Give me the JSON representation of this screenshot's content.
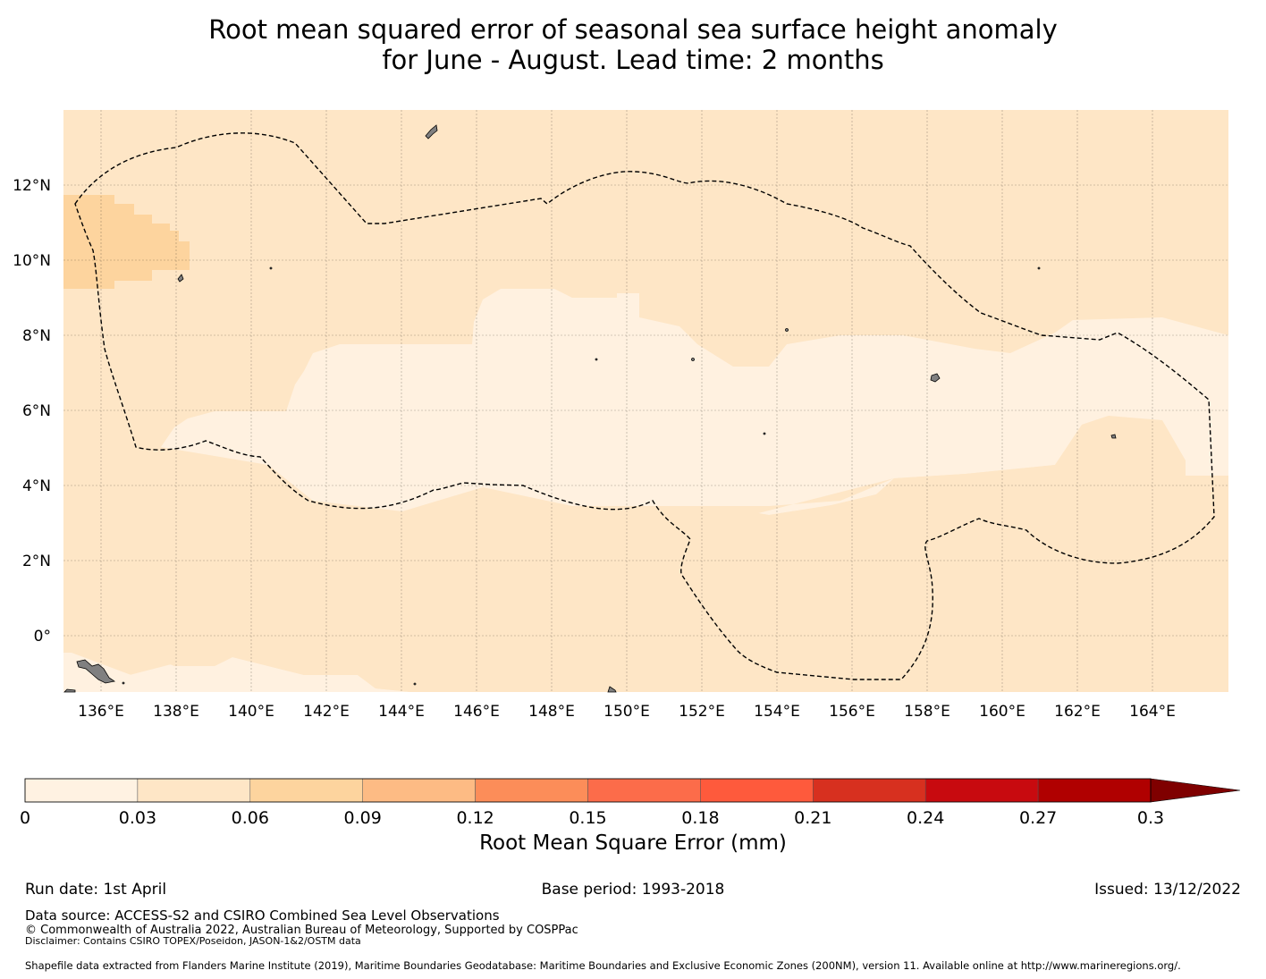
{
  "title": {
    "line1": "Root mean squared error of seasonal sea surface height anomaly",
    "line2": "for June - August. Lead time: 2 months"
  },
  "map": {
    "lon_range": [
      135,
      166
    ],
    "lat_range": [
      -1.5,
      14
    ],
    "lon_ticks": [
      "136°E",
      "138°E",
      "140°E",
      "142°E",
      "144°E",
      "146°E",
      "148°E",
      "150°E",
      "152°E",
      "154°E",
      "156°E",
      "158°E",
      "160°E",
      "162°E",
      "164°E"
    ],
    "lat_ticks": [
      "12°N",
      "10°N",
      "8°N",
      "6°N",
      "4°N",
      "2°N",
      "0°"
    ],
    "grid": true,
    "colors": {
      "band_0_003": "#fff1e0",
      "band_003_006": "#fee6c6",
      "band_006_009": "#fdd49e",
      "land": "#808080",
      "eez_line": "#000000"
    }
  },
  "colorbar": {
    "label": "Root Mean Square Error (mm)",
    "ticks": [
      "0",
      "0.03",
      "0.06",
      "0.09",
      "0.12",
      "0.15",
      "0.18",
      "0.21",
      "0.24",
      "0.27",
      "0.3"
    ],
    "colors": [
      "#fff2e2",
      "#fee6c6",
      "#fdd49e",
      "#fdbb84",
      "#fc8d59",
      "#fc6c4a",
      "#fe5a3c",
      "#d7301f",
      "#c80a0f",
      "#b00000",
      "#7f0000"
    ],
    "extend": "max"
  },
  "footer": {
    "run_date": "Run date: 1st April",
    "base_period": "Base period: 1993-2018",
    "issued": "Issued: 13/12/2022",
    "data_source": "Data source: ACCESS-S2 and CSIRO Combined Sea Level Observations",
    "copyright": "© Commonwealth of Australia 2022, Australian Bureau of Meteorology, Supported by COSPPac",
    "disclaimer": "Disclaimer: Contains CSIRO TOPEX/Poseidon, JASON-1&2/OSTM data",
    "shapefile": "Shapefile data extracted from Flanders Marine Institute (2019), Maritime Boundaries Geodatabase: Maritime Boundaries and Exclusive Economic Zones (200NM), version 11. Available online at http://www.marineregions.org/."
  }
}
